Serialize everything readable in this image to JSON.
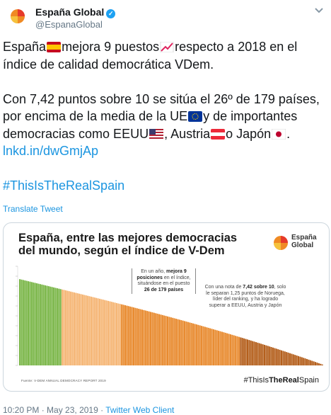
{
  "account": {
    "name": "España Global",
    "handle": "@EspanaGlobal",
    "avatar_icon": "espana-global-logo"
  },
  "tweet": {
    "l1_a": "España",
    "l1_b": "mejora 9 puestos",
    "l1_c": "respecto a 2018 en el",
    "l2": "índice de calidad democrática VDem.",
    "l3": "Con 7,42 puntos sobre 10 se sitúa el 26º de 179 países,",
    "l4_a": "por encima de la media de la UE",
    "l4_b": "y de importantes",
    "l5_a": "democracias como EEUU",
    "l5_b": ", Austria",
    "l5_c": "o Japón",
    "l5_d": ".",
    "link": "lnkd.in/dwGmjAp",
    "hashtag": "#ThisIsTheRealSpain",
    "emojis": [
      "spain-flag",
      "chart-increasing",
      "eu-flag",
      "us-flag",
      "austria-flag",
      "japan-flag"
    ]
  },
  "translate_label": "Translate Tweet",
  "card": {
    "title_l1": "España, entre las mejores democracias",
    "title_l2": "del mundo, según el índice de V-Dem",
    "brand_l1": "España",
    "brand_l2": "Global",
    "annotation1": {
      "t1": "En un año, ",
      "b1": "mejora 9",
      "t2": "posiciones",
      "t3": " en el índice,",
      "t4": "situándose en el puesto",
      "b2": "26 de 179 países"
    },
    "annotation2": {
      "t1": "Con una nota de ",
      "b1": "7,42 sobre 10",
      "t2": ", solo",
      "t3": "le separan 1,25 puntos de Noruega,",
      "t4": "líder del ranking, y ha logrado",
      "t5": "superar a EEUU, Austria y Japón"
    },
    "source": "Fuente:  V-DEM ANNUAL DEMOCRACY REPORT 2019",
    "hashtag_a": "#ThisIs",
    "hashtag_b": "TheReal",
    "hashtag_c": "Spain"
  },
  "chart_data": {
    "type": "bar",
    "title": "España, entre las mejores democracias del mundo, según el índice de V-Dem",
    "num_categories": 179,
    "highlight_rank": 26,
    "ylim": [
      0,
      10
    ],
    "y_ticks": [],
    "values_note": "Scores descend from about 8.7 (rank 1) to about 0.1 (rank 179); values estimated",
    "colors": {
      "green": "#7ab648",
      "light_orange": "#f5b574",
      "orange": "#e88a2e",
      "brown": "#b45f1c"
    },
    "segments": [
      {
        "name": "green",
        "count": 25
      },
      {
        "name": "light_orange",
        "count": 35
      },
      {
        "name": "orange",
        "count": 70
      },
      {
        "name": "brown",
        "count": 49
      }
    ]
  },
  "meta": {
    "time": "10:20 PM",
    "date": "May 23, 2019",
    "client": "Twitter Web Client",
    "sep": " · "
  }
}
